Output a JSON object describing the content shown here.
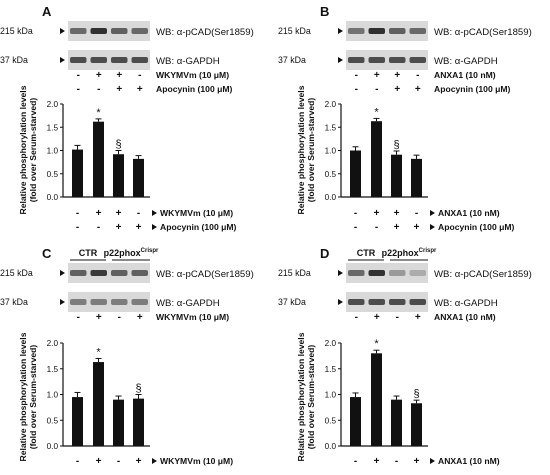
{
  "figure": {
    "panels": [
      {
        "letter": "A",
        "blots": [
          {
            "kda": "215 kDa",
            "label": "WB: α-pCAD(Ser1859)",
            "band_intensity": [
              0.55,
              0.85,
              0.6,
              0.55
            ]
          },
          {
            "kda": "37 kDa",
            "label": "WB: α-GAPDH",
            "band_intensity": [
              0.7,
              0.7,
              0.7,
              0.7
            ]
          }
        ],
        "groups": [],
        "blot_treatments": [
          {
            "label": "WKYMVm (10 μM)",
            "signs": [
              "-",
              "+",
              "+",
              "-"
            ]
          },
          {
            "label": "Apocynin (100 μM)",
            "signs": [
              "-",
              "-",
              "+",
              "+"
            ]
          }
        ],
        "ylabel_line1": "Relative phosphorylation levels",
        "ylabel_line2": "(fold over Serum-starved)",
        "yticks": [
          "0.0",
          "0.5",
          "1.0",
          "1.5",
          "2.0"
        ],
        "ylim": [
          0,
          2
        ],
        "values": [
          1.02,
          1.62,
          0.92,
          0.82
        ],
        "errors": [
          0.09,
          0.06,
          0.08,
          0.07
        ],
        "marks": [
          "",
          "*",
          "§",
          ""
        ],
        "treatments": [
          {
            "label": "WKYMVm (10 μM)",
            "signs": [
              "-",
              "+",
              "+",
              "-"
            ]
          },
          {
            "label": "Apocynin (100 μM)",
            "signs": [
              "-",
              "-",
              "+",
              "+"
            ]
          }
        ]
      },
      {
        "letter": "B",
        "blots": [
          {
            "kda": "215 kDa",
            "label": "WB: α-pCAD(Ser1859)",
            "band_intensity": [
              0.5,
              0.85,
              0.6,
              0.55
            ]
          },
          {
            "kda": "37 kDa",
            "label": "WB: α-GAPDH",
            "band_intensity": [
              0.7,
              0.7,
              0.7,
              0.7
            ]
          }
        ],
        "groups": [],
        "blot_treatments": [
          {
            "label": "ANXA1 (10 nM)",
            "signs": [
              "-",
              "+",
              "+",
              "-"
            ]
          },
          {
            "label": "Apocynin (100 μM)",
            "signs": [
              "-",
              "-",
              "+",
              "+"
            ]
          }
        ],
        "ylabel_line1": "Relative phosphorylation levels",
        "ylabel_line2": "(fold over Serum-starved)",
        "yticks": [
          "0.0",
          "0.5",
          "1.0",
          "1.5",
          "2.0"
        ],
        "ylim": [
          0,
          2
        ],
        "values": [
          1.0,
          1.63,
          0.91,
          0.82
        ],
        "errors": [
          0.08,
          0.06,
          0.08,
          0.08
        ],
        "marks": [
          "",
          "*",
          "§",
          ""
        ],
        "treatments": [
          {
            "label": "ANXA1 (10 nM)",
            "signs": [
              "-",
              "+",
              "+",
              "-"
            ]
          },
          {
            "label": "Apocynin (100 μM)",
            "signs": [
              "-",
              "-",
              "+",
              "+"
            ]
          }
        ]
      },
      {
        "letter": "C",
        "blots": [
          {
            "kda": "215 kDa",
            "label": "WB: α-pCAD(Ser1859)",
            "band_intensity": [
              0.6,
              0.8,
              0.6,
              0.6
            ]
          },
          {
            "kda": "37 kDa",
            "label": "WB: α-GAPDH",
            "band_intensity": [
              0.45,
              0.45,
              0.45,
              0.45
            ]
          }
        ],
        "groups": [
          {
            "name": "CTR",
            "sup": ""
          },
          {
            "name": "p22phox",
            "sup": "Crispr"
          }
        ],
        "blot_treatments": [
          {
            "label": "WKYMVm (10 μM)",
            "signs": [
              "-",
              "+",
              "-",
              "+"
            ]
          }
        ],
        "ylabel_line1": "Relative phosphorylation levels",
        "ylabel_line2": "(fold over Serum-starved)",
        "yticks": [
          "0.0",
          "0.5",
          "1.0",
          "1.5",
          "2.0"
        ],
        "ylim": [
          0,
          2
        ],
        "values": [
          0.95,
          1.63,
          0.9,
          0.92
        ],
        "errors": [
          0.09,
          0.07,
          0.07,
          0.08
        ],
        "marks": [
          "",
          "*",
          "",
          "§"
        ],
        "treatments": [
          {
            "label": "WKYMVm (10 μM)",
            "signs": [
              "-",
              "+",
              "-",
              "+"
            ]
          }
        ]
      },
      {
        "letter": "D",
        "blots": [
          {
            "kda": "215 kDa",
            "label": "WB: α-pCAD(Ser1859)",
            "band_intensity": [
              0.55,
              0.85,
              0.3,
              0.2
            ]
          },
          {
            "kda": "37 kDa",
            "label": "WB: α-GAPDH",
            "band_intensity": [
              0.7,
              0.7,
              0.7,
              0.7
            ]
          }
        ],
        "groups": [
          {
            "name": "CTR",
            "sup": ""
          },
          {
            "name": "p22phox",
            "sup": "Crispr"
          }
        ],
        "blot_treatments": [
          {
            "label": "ANXA1 (10 nM)",
            "signs": [
              "-",
              "+",
              "-",
              "+"
            ]
          }
        ],
        "ylabel_line1": "Relative phosphorylation levels",
        "ylabel_line2": "(fold over Serum-starved)",
        "yticks": [
          "0.0",
          "0.5",
          "1.0",
          "1.5",
          "2.0"
        ],
        "ylim": [
          0,
          2
        ],
        "values": [
          0.95,
          1.8,
          0.9,
          0.83
        ],
        "errors": [
          0.08,
          0.06,
          0.07,
          0.06
        ],
        "marks": [
          "",
          "*",
          "",
          "§"
        ],
        "treatments": [
          {
            "label": "ANXA1 (10 nM)",
            "signs": [
              "-",
              "+",
              "-",
              "+"
            ]
          }
        ]
      }
    ]
  },
  "chart_data": [
    {
      "type": "bar",
      "panel": "A",
      "categories": [
        "1",
        "2",
        "3",
        "4"
      ],
      "values": [
        1.02,
        1.62,
        0.92,
        0.82
      ],
      "errors": [
        0.09,
        0.06,
        0.08,
        0.07
      ],
      "ylabel": "Relative phosphorylation levels (fold over Serum-starved)",
      "ylim": [
        0,
        2
      ],
      "grid": false
    },
    {
      "type": "bar",
      "panel": "B",
      "categories": [
        "1",
        "2",
        "3",
        "4"
      ],
      "values": [
        1.0,
        1.63,
        0.91,
        0.82
      ],
      "errors": [
        0.08,
        0.06,
        0.08,
        0.08
      ],
      "ylabel": "Relative phosphorylation levels (fold over Serum-starved)",
      "ylim": [
        0,
        2
      ],
      "grid": false
    },
    {
      "type": "bar",
      "panel": "C",
      "categories": [
        "1",
        "2",
        "3",
        "4"
      ],
      "values": [
        0.95,
        1.63,
        0.9,
        0.92
      ],
      "errors": [
        0.09,
        0.07,
        0.07,
        0.08
      ],
      "ylabel": "Relative phosphorylation levels (fold over Serum-starved)",
      "ylim": [
        0,
        2
      ],
      "grid": false
    },
    {
      "type": "bar",
      "panel": "D",
      "categories": [
        "1",
        "2",
        "3",
        "4"
      ],
      "values": [
        0.95,
        1.8,
        0.9,
        0.83
      ],
      "errors": [
        0.08,
        0.06,
        0.07,
        0.06
      ],
      "ylabel": "Relative phosphorylation levels (fold over Serum-starved)",
      "ylim": [
        0,
        2
      ],
      "grid": false
    }
  ]
}
